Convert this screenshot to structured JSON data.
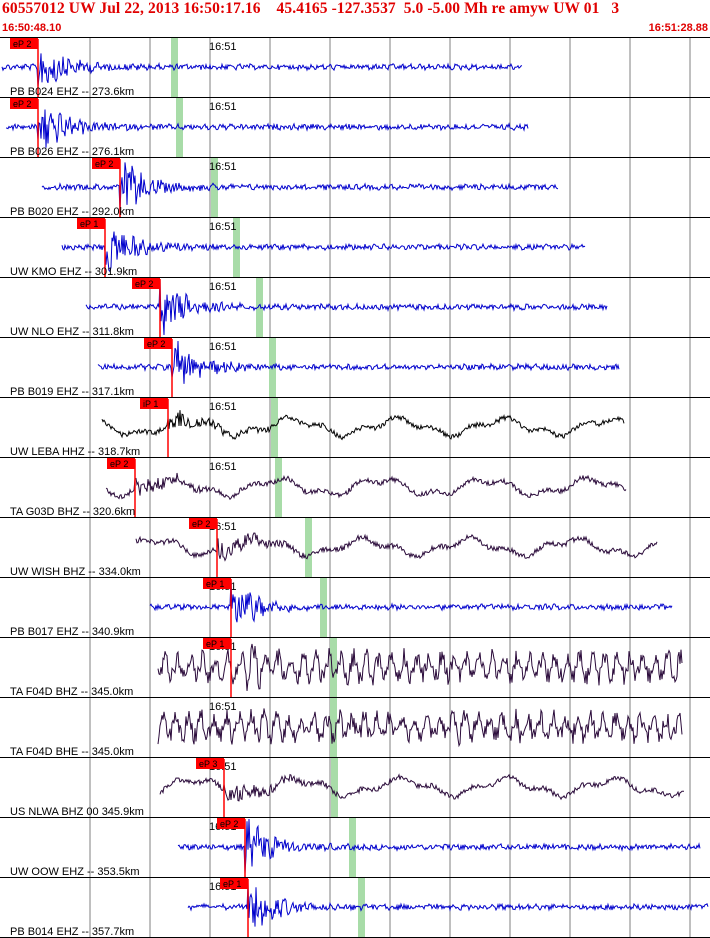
{
  "header": {
    "title": "60557012 UW Jul 22, 2013 16:50:17.16    45.4165 -127.3537  5.0 -5.00 Mh re amyw UW 01   3",
    "time_start": "16:50:48.10",
    "time_end": "16:51:28.88"
  },
  "minute_label": "16:51",
  "colors": {
    "accent": "#e00000",
    "pick_box": "#ff0000",
    "trace_blue": "#0000cc",
    "trace_black": "#000000",
    "trace_purple": "#2a0a3a",
    "s_marker": "#a8dca8",
    "grid": "#000000"
  },
  "traces": [
    {
      "label": "PB B024 EHZ -- 273.6km",
      "pick": "eP 2",
      "color": "blue",
      "style": "hf"
    },
    {
      "label": "PB B026 EHZ -- 276.1km",
      "pick": "eP 2",
      "color": "blue",
      "style": "hf"
    },
    {
      "label": "PB B020 EHZ -- 292.0km",
      "pick": "eP 2",
      "color": "blue",
      "style": "hf"
    },
    {
      "label": "UW KMO EHZ -- 301.9km",
      "pick": "eP 1",
      "color": "blue",
      "style": "hf"
    },
    {
      "label": "UW NLO EHZ -- 311.8km",
      "pick": "eP 2",
      "color": "blue",
      "style": "hf"
    },
    {
      "label": "PB B019 EHZ -- 317.1km",
      "pick": "eP 2",
      "color": "blue",
      "style": "hf"
    },
    {
      "label": "UW LEBA HHZ -- 318.7km",
      "pick": "iP 1",
      "color": "black",
      "style": "lf"
    },
    {
      "label": "TA G03D BHZ -- 320.6km",
      "pick": "eP 2",
      "color": "purple",
      "style": "lf"
    },
    {
      "label": "UW WISH BHZ -- 334.0km",
      "pick": "eP 2",
      "color": "purple",
      "style": "lf"
    },
    {
      "label": "PB B017 EHZ -- 340.9km",
      "pick": "eP 1",
      "color": "blue",
      "style": "hf"
    },
    {
      "label": "TA F04D BHZ -- 345.0km",
      "pick": "eP 1",
      "color": "purple",
      "style": "noisy"
    },
    {
      "label": "TA F04D BHE -- 345.0km",
      "pick": "",
      "color": "purple",
      "style": "noisy"
    },
    {
      "label": "US NLWA BHZ 00 345.9km",
      "pick": "eP 3",
      "color": "purple",
      "style": "lf"
    },
    {
      "label": "UW OOW EHZ -- 353.5km",
      "pick": "eP 2",
      "color": "blue",
      "style": "hf"
    },
    {
      "label": "PB B014 EHZ -- 357.7km",
      "pick": "eP 1",
      "color": "blue",
      "style": "hf"
    }
  ]
}
